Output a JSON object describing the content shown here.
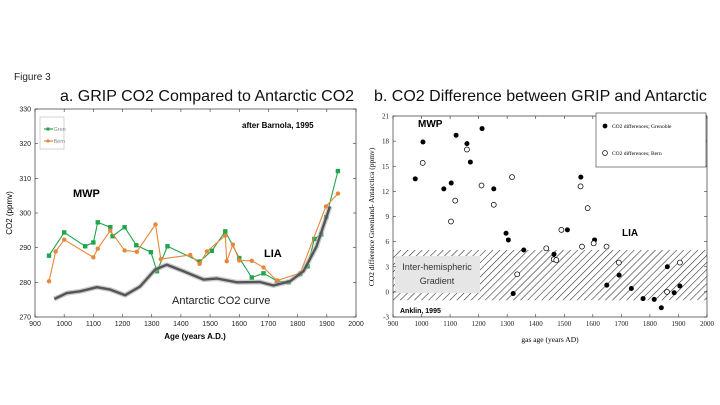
{
  "figure_label": "Figure 3",
  "chart_data": [
    {
      "type": "line",
      "title": "a.  GRIP CO2 Compared to Antarctic CO2",
      "xlabel": "Age (years A.D.)",
      "ylabel": "CO2 (ppmv)",
      "xlim": [
        900,
        2000
      ],
      "ylim": [
        270,
        330
      ],
      "xticks": [
        900,
        1000,
        1100,
        1200,
        1300,
        1400,
        1500,
        1600,
        1700,
        1800,
        1900,
        2000
      ],
      "yticks": [
        270,
        280,
        290,
        300,
        310,
        320,
        330
      ],
      "legend_position": "top-left",
      "annotations": {
        "source": "after Barnola, 1995",
        "mwp": "MWP",
        "lia": "LIA",
        "curve_label": "Antarctic CO2 curve"
      },
      "series": [
        {
          "name": "Gren",
          "color": "#1fa64a",
          "marker": "square",
          "x": [
            948,
            1000,
            1072,
            1100,
            1115,
            1158,
            1166,
            1207,
            1247,
            1297,
            1318,
            1354,
            1464,
            1506,
            1552,
            1600,
            1643,
            1683,
            1729,
            1769,
            1809,
            1834,
            1857,
            1881,
            1898,
            1938
          ],
          "y": [
            287.7,
            294.4,
            290.4,
            291.5,
            297.3,
            295.9,
            293.3,
            295.9,
            290.7,
            288.7,
            283.2,
            290.4,
            286.0,
            289.1,
            294.7,
            287.0,
            281.4,
            282.6,
            280.4,
            280.0,
            282.4,
            284.6,
            292.5,
            293.8,
            298.8,
            312.1
          ]
        },
        {
          "name": "Bern",
          "color": "#e8873a",
          "marker": "circle",
          "x": [
            948,
            971,
            1000,
            1100,
            1115,
            1158,
            1207,
            1249,
            1313,
            1331,
            1432,
            1464,
            1489,
            1552,
            1557,
            1578,
            1600,
            1643,
            1683,
            1729,
            1809,
            1897,
            1938
          ],
          "y": [
            280.3,
            288.9,
            292.3,
            287.2,
            289.7,
            294.9,
            289.2,
            288.8,
            296.7,
            286.7,
            287.9,
            285.3,
            288.9,
            293.5,
            286.1,
            290.9,
            286.3,
            286.2,
            284.3,
            280.5,
            282.7,
            301.9,
            305.6
          ]
        },
        {
          "name": "Antarctic CO2 curve",
          "color": "#555555",
          "marker": "none",
          "x": [
            966,
            1009,
            1055,
            1112,
            1158,
            1209,
            1260,
            1312,
            1352,
            1409,
            1478,
            1523,
            1592,
            1671,
            1717,
            1774,
            1820,
            1865,
            1911
          ],
          "y": [
            275.2,
            276.9,
            277.4,
            278.6,
            277.9,
            276.3,
            278.8,
            283.7,
            285.1,
            283.2,
            280.8,
            281.1,
            280.0,
            280.1,
            279.1,
            280.3,
            283.2,
            290.4,
            301.9
          ]
        }
      ]
    },
    {
      "type": "scatter",
      "title": "b.  CO2 Difference between GRIP and Antarctic",
      "xlabel": "gas age (years AD)",
      "ylabel": "CO2 difference Greenland- Antarctica (ppmv)",
      "xlim": [
        900,
        2000
      ],
      "ylim": [
        -3,
        21
      ],
      "xticks": [
        900,
        1000,
        1100,
        1200,
        1300,
        1400,
        1500,
        1600,
        1700,
        1800,
        1900,
        2000
      ],
      "yticks": [
        -3,
        0,
        3,
        6,
        9,
        12,
        15,
        18,
        21
      ],
      "legend_position": "top-right",
      "band": {
        "label": "Inter-hemispheric Gradient",
        "y": [
          -1,
          5
        ]
      },
      "annotations": {
        "source": "Anklin, 1995",
        "mwp": "MWP",
        "lia": "LIA"
      },
      "series": [
        {
          "name": "CO2 differences; Grenoble",
          "color": "#000000",
          "marker": "filled-circle",
          "x": [
            978,
            1005,
            1078,
            1104,
            1121,
            1159,
            1171,
            1212,
            1253,
            1296,
            1304,
            1321,
            1358,
            1464,
            1511,
            1558,
            1606,
            1649,
            1692,
            1735,
            1776,
            1815,
            1840,
            1861,
            1885,
            1905
          ],
          "y": [
            13.5,
            17.9,
            12.3,
            13.0,
            18.7,
            17.7,
            15.5,
            19.5,
            12.3,
            7.0,
            6.2,
            -0.2,
            5.0,
            4.5,
            7.4,
            13.7,
            6.2,
            0.8,
            2.0,
            0.4,
            -0.8,
            -0.9,
            -1.9,
            3.0,
            -0.1,
            0.7
          ]
        },
        {
          "name": "CO2 differences; Bern",
          "color": "#000000",
          "marker": "open-circle",
          "x": [
            1004,
            1103,
            1118,
            1159,
            1210,
            1253,
            1317,
            1335,
            1437,
            1463,
            1472,
            1490,
            1557,
            1562,
            1582,
            1603,
            1648,
            1691,
            1860,
            1905
          ],
          "y": [
            15.4,
            8.4,
            10.9,
            17.0,
            12.7,
            10.4,
            13.7,
            2.1,
            5.2,
            3.9,
            3.8,
            7.4,
            12.6,
            5.4,
            10.0,
            5.8,
            5.4,
            3.5,
            0.0,
            3.5
          ]
        }
      ]
    }
  ]
}
